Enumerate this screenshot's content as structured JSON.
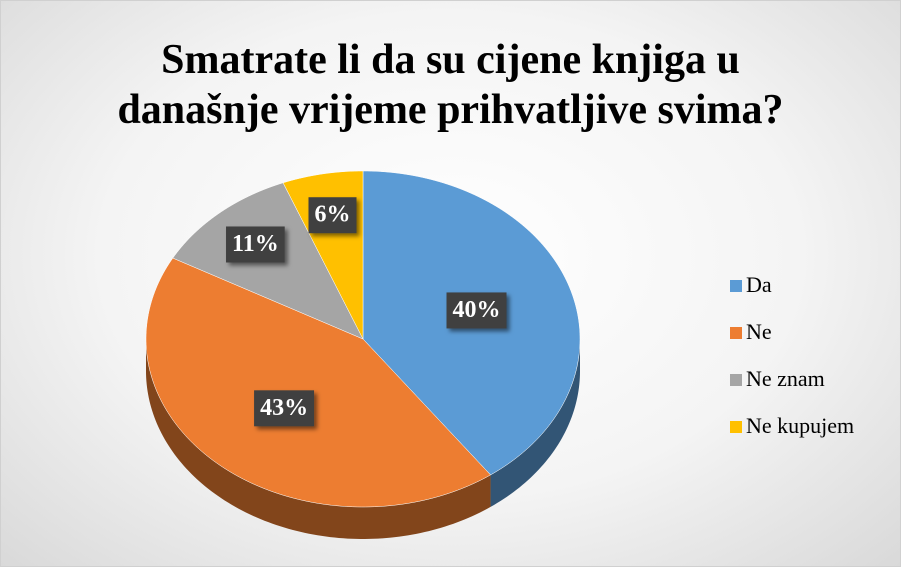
{
  "chart_data": {
    "type": "pie",
    "title": "Smatrate li da su cijene knjiga u\ndanašnje vrijeme prihvatljive svima?",
    "categories": [
      "Da",
      "Ne",
      "Ne znam",
      "Ne kupujem"
    ],
    "values": [
      40,
      43,
      11,
      6
    ],
    "value_labels": [
      "40%",
      "43%",
      "11%",
      "6%"
    ],
    "colors": [
      "#5b9bd5",
      "#ed7d31",
      "#a5a5a5",
      "#ffc000"
    ],
    "legend": "right"
  }
}
